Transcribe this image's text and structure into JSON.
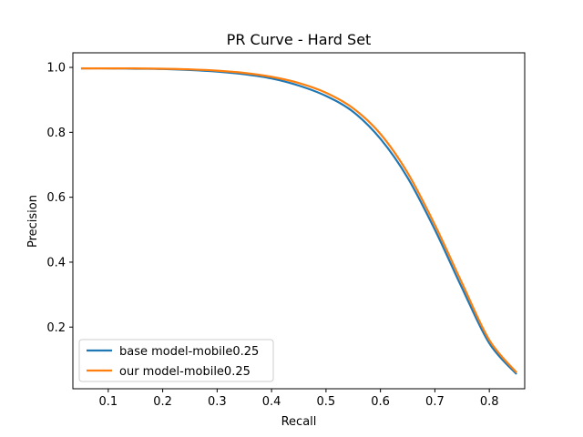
{
  "chart_data": {
    "type": "line",
    "title": "PR Curve - Hard Set",
    "xlabel": "Recall",
    "ylabel": "Precision",
    "xlim": [
      0.035,
      0.865
    ],
    "ylim": [
      0.01,
      1.045
    ],
    "xticks": [
      "0.1",
      "0.2",
      "0.3",
      "0.4",
      "0.5",
      "0.6",
      "0.7",
      "0.8"
    ],
    "xtick_values": [
      0.1,
      0.2,
      0.3,
      0.4,
      0.5,
      0.6,
      0.7,
      0.8
    ],
    "yticks": [
      "0.2",
      "0.4",
      "0.6",
      "0.8",
      "1.0"
    ],
    "ytick_values": [
      0.2,
      0.4,
      0.6,
      0.8,
      1.0
    ],
    "grid": false,
    "legend_position": "lower-left",
    "series": [
      {
        "name": "base model-mobile0.25",
        "color": "#1f77b4",
        "x": [
          0.05,
          0.1,
          0.15,
          0.2,
          0.25,
          0.3,
          0.35,
          0.4,
          0.45,
          0.5,
          0.55,
          0.6,
          0.65,
          0.7,
          0.75,
          0.8,
          0.85
        ],
        "y": [
          0.997,
          0.997,
          0.996,
          0.995,
          0.992,
          0.987,
          0.979,
          0.966,
          0.944,
          0.912,
          0.863,
          0.78,
          0.66,
          0.5,
          0.32,
          0.15,
          0.055
        ]
      },
      {
        "name": "our model-mobile0.25",
        "color": "#ff7f0e",
        "x": [
          0.05,
          0.1,
          0.15,
          0.2,
          0.25,
          0.3,
          0.35,
          0.4,
          0.45,
          0.5,
          0.55,
          0.6,
          0.65,
          0.7,
          0.75,
          0.8,
          0.85
        ],
        "y": [
          0.997,
          0.997,
          0.997,
          0.996,
          0.994,
          0.99,
          0.983,
          0.971,
          0.952,
          0.922,
          0.874,
          0.795,
          0.675,
          0.515,
          0.335,
          0.16,
          0.06
        ]
      }
    ]
  }
}
